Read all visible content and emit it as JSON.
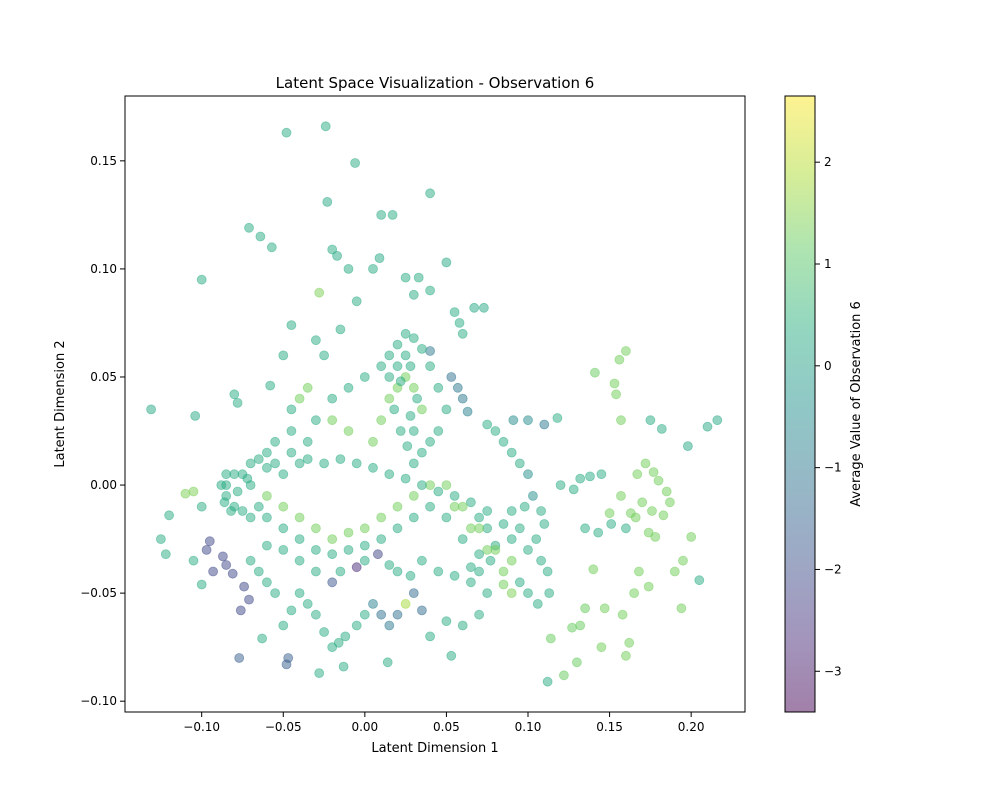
{
  "chart_data": {
    "type": "scatter",
    "title": "Latent Space Visualization - Observation 6",
    "xlabel": "Latent Dimension 1",
    "ylabel": "Latent Dimension 2",
    "xlim": [
      -0.147,
      0.233
    ],
    "ylim": [
      -0.105,
      0.18
    ],
    "x_ticks": [
      -0.1,
      -0.05,
      0.0,
      0.05,
      0.1,
      0.15,
      0.2
    ],
    "x_tick_labels": [
      "−0.10",
      "−0.05",
      "0.00",
      "0.05",
      "0.10",
      "0.15",
      "0.20"
    ],
    "y_ticks": [
      -0.1,
      -0.05,
      0.0,
      0.05,
      0.1,
      0.15
    ],
    "y_tick_labels": [
      "−0.10",
      "−0.05",
      "0.00",
      "0.05",
      "0.10",
      "0.15"
    ],
    "grid": false,
    "colormap": "viridis",
    "point_alpha": 0.5,
    "colorbar": {
      "label": "Average Value of Observation 6",
      "range": [
        -3.4,
        2.65
      ],
      "ticks": [
        -3,
        -2,
        -1,
        0,
        1,
        2
      ],
      "tick_labels": [
        "−3",
        "−2",
        "−1",
        "0",
        "1",
        "2"
      ]
    },
    "points": [
      [
        -0.048,
        0.163,
        0.3
      ],
      [
        -0.024,
        0.166,
        0.3
      ],
      [
        -0.006,
        0.149,
        0.3
      ],
      [
        0.04,
        0.135,
        0.3
      ],
      [
        -0.023,
        0.131,
        0.2
      ],
      [
        0.01,
        0.125,
        0.3
      ],
      [
        0.017,
        0.125,
        0.3
      ],
      [
        -0.071,
        0.119,
        0.3
      ],
      [
        -0.064,
        0.115,
        0.3
      ],
      [
        -0.057,
        0.11,
        0.3
      ],
      [
        -0.1,
        0.095,
        0.3
      ],
      [
        -0.02,
        0.109,
        0.3
      ],
      [
        0.05,
        0.103,
        0.2
      ],
      [
        -0.017,
        0.106,
        0.2
      ],
      [
        0.009,
        0.105,
        0.2
      ],
      [
        -0.131,
        0.035,
        0.2
      ],
      [
        -0.104,
        0.032,
        0.2
      ],
      [
        -0.028,
        0.089,
        1.4
      ],
      [
        0.073,
        0.082,
        0.2
      ],
      [
        0.067,
        0.082,
        0.2
      ],
      [
        0.141,
        0.052,
        1.2
      ],
      [
        0.156,
        0.058,
        1.3
      ],
      [
        0.16,
        0.062,
        1.3
      ],
      [
        0.153,
        0.047,
        1.3
      ],
      [
        0.154,
        0.042,
        1.3
      ],
      [
        0.157,
        0.03,
        1.3
      ],
      [
        0.175,
        0.03,
        0.3
      ],
      [
        0.182,
        0.026,
        0.3
      ],
      [
        0.216,
        0.03,
        0.2
      ],
      [
        0.21,
        0.027,
        0.2
      ],
      [
        0.198,
        0.018,
        0.2
      ],
      [
        0.118,
        0.031,
        0.3
      ],
      [
        0.1,
        0.03,
        -0.5
      ],
      [
        0.091,
        0.03,
        -0.5
      ],
      [
        0.11,
        0.028,
        -1.0
      ],
      [
        0.167,
        0.005,
        1.3
      ],
      [
        0.172,
        0.01,
        1.3
      ],
      [
        0.177,
        0.006,
        1.3
      ],
      [
        0.18,
        0.002,
        1.3
      ],
      [
        0.185,
        -0.003,
        1.3
      ],
      [
        0.187,
        -0.008,
        1.3
      ],
      [
        0.183,
        -0.014,
        1.3
      ],
      [
        0.176,
        -0.012,
        1.3
      ],
      [
        0.17,
        -0.008,
        1.3
      ],
      [
        0.163,
        -0.013,
        1.3
      ],
      [
        0.157,
        -0.005,
        1.3
      ],
      [
        0.15,
        -0.013,
        1.3
      ],
      [
        0.145,
        0.005,
        0.3
      ],
      [
        0.138,
        0.004,
        0.3
      ],
      [
        0.132,
        0.003,
        0.3
      ],
      [
        0.128,
        -0.002,
        0.3
      ],
      [
        0.12,
        0.0,
        0.3
      ],
      [
        0.135,
        -0.02,
        0.3
      ],
      [
        0.143,
        -0.022,
        0.3
      ],
      [
        0.151,
        -0.018,
        0.3
      ],
      [
        0.16,
        -0.02,
        0.3
      ],
      [
        0.166,
        -0.015,
        1.3
      ],
      [
        0.174,
        -0.022,
        1.3
      ],
      [
        0.178,
        -0.024,
        1.3
      ],
      [
        0.19,
        -0.04,
        1.3
      ],
      [
        0.195,
        -0.035,
        1.3
      ],
      [
        0.205,
        -0.044,
        0.3
      ],
      [
        0.194,
        -0.057,
        1.3
      ],
      [
        0.2,
        -0.024,
        1.3
      ],
      [
        0.174,
        -0.047,
        1.3
      ],
      [
        0.168,
        -0.04,
        1.3
      ],
      [
        0.165,
        -0.05,
        1.3
      ],
      [
        0.158,
        -0.06,
        1.3
      ],
      [
        0.14,
        -0.039,
        1.3
      ],
      [
        0.145,
        -0.075,
        1.3
      ],
      [
        0.162,
        -0.073,
        1.3
      ],
      [
        0.147,
        -0.057,
        1.3
      ],
      [
        0.135,
        -0.057,
        1.2
      ],
      [
        0.127,
        -0.066,
        1.2
      ],
      [
        0.13,
        -0.082,
        1.2
      ],
      [
        0.122,
        -0.088,
        1.2
      ],
      [
        0.112,
        -0.091,
        0.3
      ],
      [
        0.16,
        -0.079,
        1.3
      ],
      [
        0.114,
        -0.071,
        1.2
      ],
      [
        0.132,
        -0.065,
        1.2
      ],
      [
        -0.077,
        -0.08,
        -1.6
      ],
      [
        -0.047,
        -0.08,
        -1.6
      ],
      [
        -0.048,
        -0.083,
        -1.6
      ],
      [
        -0.028,
        -0.087,
        0.3
      ],
      [
        -0.013,
        -0.084,
        0.3
      ],
      [
        0.014,
        -0.082,
        0.3
      ],
      [
        0.053,
        -0.079,
        0.3
      ],
      [
        -0.016,
        -0.073,
        0.3
      ],
      [
        -0.063,
        -0.071,
        0.3
      ],
      [
        -0.076,
        -0.058,
        -2.1
      ],
      [
        -0.071,
        -0.053,
        -2.1
      ],
      [
        -0.074,
        -0.047,
        -2.1
      ],
      [
        -0.081,
        -0.041,
        -2.1
      ],
      [
        -0.085,
        -0.037,
        -2.1
      ],
      [
        -0.087,
        -0.033,
        -2.1
      ],
      [
        -0.095,
        -0.026,
        -2.1
      ],
      [
        -0.097,
        -0.03,
        -2.1
      ],
      [
        -0.093,
        -0.04,
        -2.1
      ],
      [
        -0.1,
        -0.046,
        0.3
      ],
      [
        -0.105,
        -0.035,
        0.3
      ],
      [
        -0.12,
        -0.014,
        0.3
      ],
      [
        -0.125,
        -0.025,
        0.3
      ],
      [
        -0.122,
        -0.032,
        0.3
      ],
      [
        -0.11,
        -0.004,
        1.4
      ],
      [
        -0.105,
        -0.003,
        1.4
      ],
      [
        -0.1,
        -0.01,
        0.3
      ],
      [
        -0.08,
        0.042,
        0.3
      ],
      [
        -0.078,
        0.038,
        0.3
      ],
      [
        -0.058,
        0.046,
        0.3
      ],
      [
        -0.045,
        0.074,
        0.3
      ],
      [
        -0.05,
        0.06,
        0.3
      ],
      [
        -0.03,
        0.067,
        0.3
      ],
      [
        -0.025,
        0.06,
        0.3
      ],
      [
        -0.015,
        0.072,
        0.3
      ],
      [
        -0.005,
        0.085,
        0.3
      ],
      [
        -0.01,
        0.1,
        0.3
      ],
      [
        0.005,
        0.1,
        0.3
      ],
      [
        0.025,
        0.096,
        0.3
      ],
      [
        0.033,
        0.096,
        0.3
      ],
      [
        0.04,
        0.09,
        0.3
      ],
      [
        0.03,
        0.088,
        0.3
      ],
      [
        0.055,
        0.08,
        0.3
      ],
      [
        0.058,
        0.075,
        0.3
      ],
      [
        0.06,
        0.07,
        0.3
      ],
      [
        0.04,
        0.062,
        -1.0
      ],
      [
        0.053,
        0.05,
        -1.2
      ],
      [
        0.057,
        0.045,
        -1.0
      ],
      [
        0.06,
        0.04,
        -1.0
      ],
      [
        0.063,
        0.034,
        -0.8
      ],
      [
        0.075,
        0.028,
        0.3
      ],
      [
        0.08,
        0.025,
        0.3
      ],
      [
        0.085,
        0.02,
        0.3
      ],
      [
        0.09,
        0.015,
        0.3
      ],
      [
        0.095,
        0.01,
        0.3
      ],
      [
        0.1,
        0.005,
        -0.4
      ],
      [
        0.103,
        -0.005,
        -0.4
      ],
      [
        0.108,
        -0.012,
        0.3
      ],
      [
        0.11,
        -0.018,
        0.3
      ],
      [
        0.105,
        -0.025,
        0.3
      ],
      [
        0.1,
        -0.03,
        0.3
      ],
      [
        0.108,
        -0.035,
        0.3
      ],
      [
        0.112,
        -0.04,
        0.3
      ],
      [
        0.113,
        -0.05,
        0.3
      ],
      [
        0.106,
        -0.055,
        0.3
      ],
      [
        0.1,
        -0.05,
        0.3
      ],
      [
        0.095,
        -0.045,
        0.3
      ],
      [
        0.09,
        -0.05,
        1.4
      ],
      [
        0.085,
        -0.046,
        1.3
      ],
      [
        0.075,
        -0.05,
        0.3
      ],
      [
        0.07,
        -0.06,
        0.3
      ],
      [
        0.06,
        -0.065,
        0.3
      ],
      [
        0.05,
        -0.063,
        0.3
      ],
      [
        0.04,
        -0.07,
        0.3
      ],
      [
        0.035,
        -0.058,
        -1.3
      ],
      [
        0.03,
        -0.05,
        -1.3
      ],
      [
        0.025,
        -0.055,
        1.8
      ],
      [
        0.02,
        -0.06,
        -1.2
      ],
      [
        0.015,
        -0.065,
        -1.0
      ],
      [
        0.01,
        -0.06,
        -1.2
      ],
      [
        0.005,
        -0.055,
        -0.8
      ],
      [
        0.0,
        -0.06,
        0.3
      ],
      [
        -0.005,
        -0.065,
        0.3
      ],
      [
        -0.012,
        -0.07,
        0.3
      ],
      [
        -0.02,
        -0.075,
        0.3
      ],
      [
        -0.025,
        -0.068,
        0.3
      ],
      [
        -0.03,
        -0.06,
        0.3
      ],
      [
        -0.035,
        -0.055,
        0.3
      ],
      [
        -0.04,
        -0.05,
        0.3
      ],
      [
        -0.045,
        -0.058,
        0.3
      ],
      [
        -0.05,
        -0.065,
        0.3
      ],
      [
        -0.055,
        -0.05,
        0.3
      ],
      [
        -0.06,
        -0.045,
        0.3
      ],
      [
        -0.065,
        -0.04,
        0.3
      ],
      [
        -0.07,
        -0.035,
        0.3
      ],
      [
        -0.06,
        -0.028,
        0.3
      ],
      [
        -0.05,
        -0.03,
        0.3
      ],
      [
        -0.04,
        -0.035,
        0.3
      ],
      [
        -0.03,
        -0.04,
        0.3
      ],
      [
        -0.02,
        -0.045,
        -1.8
      ],
      [
        -0.015,
        -0.04,
        0.3
      ],
      [
        -0.005,
        -0.038,
        -2.7
      ],
      [
        0.0,
        -0.035,
        0.3
      ],
      [
        0.008,
        -0.032,
        -2.2
      ],
      [
        0.015,
        -0.037,
        0.3
      ],
      [
        0.02,
        -0.04,
        0.3
      ],
      [
        0.028,
        -0.042,
        0.3
      ],
      [
        0.035,
        -0.035,
        0.3
      ],
      [
        0.045,
        -0.04,
        0.3
      ],
      [
        0.055,
        -0.042,
        0.3
      ],
      [
        0.065,
        -0.045,
        0.3
      ],
      [
        0.07,
        -0.04,
        0.3
      ],
      [
        0.077,
        -0.035,
        0.3
      ],
      [
        0.08,
        -0.028,
        0.3
      ],
      [
        0.075,
        -0.02,
        0.3
      ],
      [
        0.07,
        -0.015,
        0.3
      ],
      [
        0.09,
        -0.012,
        0.3
      ],
      [
        0.095,
        -0.02,
        0.3
      ],
      [
        0.098,
        -0.01,
        0.3
      ],
      [
        -0.04,
        0.01,
        0.3
      ],
      [
        -0.035,
        0.02,
        0.3
      ],
      [
        -0.03,
        0.03,
        0.3
      ],
      [
        -0.045,
        0.025,
        0.3
      ],
      [
        -0.055,
        0.02,
        0.3
      ],
      [
        -0.06,
        0.015,
        0.3
      ],
      [
        -0.05,
        0.005,
        0.3
      ],
      [
        -0.035,
        0.045,
        1.3
      ],
      [
        -0.04,
        0.04,
        1.3
      ],
      [
        -0.045,
        0.035,
        0.3
      ],
      [
        -0.02,
        0.04,
        0.3
      ],
      [
        -0.01,
        0.045,
        0.3
      ],
      [
        0.0,
        0.05,
        0.3
      ],
      [
        0.01,
        0.055,
        0.3
      ],
      [
        0.015,
        0.06,
        0.3
      ],
      [
        0.02,
        0.065,
        0.3
      ],
      [
        0.025,
        0.07,
        0.3
      ],
      [
        0.03,
        0.068,
        0.3
      ],
      [
        0.035,
        0.063,
        0.3
      ],
      [
        0.04,
        0.055,
        0.3
      ],
      [
        0.045,
        0.045,
        0.3
      ],
      [
        0.05,
        0.035,
        0.3
      ],
      [
        0.045,
        0.025,
        0.3
      ],
      [
        0.04,
        0.02,
        0.3
      ],
      [
        0.035,
        0.015,
        0.3
      ],
      [
        0.03,
        0.01,
        0.3
      ],
      [
        -0.02,
        0.03,
        1.3
      ],
      [
        -0.01,
        0.025,
        1.3
      ],
      [
        0.005,
        0.02,
        1.3
      ],
      [
        0.01,
        0.03,
        1.3
      ],
      [
        0.015,
        0.04,
        1.3
      ],
      [
        0.02,
        0.045,
        1.3
      ],
      [
        0.025,
        0.05,
        1.3
      ],
      [
        0.03,
        0.045,
        1.3
      ],
      [
        0.035,
        0.035,
        1.3
      ],
      [
        0.05,
        0.0,
        1.3
      ],
      [
        0.06,
        -0.01,
        1.3
      ],
      [
        0.07,
        -0.02,
        1.3
      ],
      [
        0.08,
        -0.03,
        1.3
      ],
      [
        0.09,
        -0.035,
        1.3
      ],
      [
        0.085,
        -0.04,
        1.3
      ],
      [
        0.075,
        -0.03,
        1.3
      ],
      [
        0.065,
        -0.02,
        1.3
      ],
      [
        0.055,
        -0.01,
        1.3
      ],
      [
        0.04,
        0.0,
        1.3
      ],
      [
        0.03,
        -0.005,
        1.3
      ],
      [
        0.02,
        -0.01,
        1.3
      ],
      [
        0.01,
        -0.015,
        1.3
      ],
      [
        0.0,
        -0.02,
        1.3
      ],
      [
        -0.01,
        -0.022,
        1.3
      ],
      [
        -0.02,
        -0.025,
        1.3
      ],
      [
        -0.03,
        -0.02,
        1.3
      ],
      [
        -0.04,
        -0.015,
        1.3
      ],
      [
        -0.05,
        -0.01,
        1.3
      ],
      [
        -0.06,
        -0.005,
        1.3
      ],
      [
        -0.07,
        0.0,
        0.3
      ],
      [
        -0.08,
        0.005,
        0.3
      ],
      [
        -0.085,
        0.0,
        0.3
      ],
      [
        -0.085,
        -0.005,
        0.3
      ],
      [
        -0.08,
        -0.01,
        0.3
      ],
      [
        -0.075,
        -0.012,
        0.3
      ],
      [
        -0.07,
        -0.015,
        0.3
      ],
      [
        -0.065,
        -0.01,
        0.3
      ],
      [
        -0.06,
        -0.015,
        0.3
      ],
      [
        -0.05,
        -0.02,
        0.3
      ],
      [
        -0.04,
        -0.025,
        0.3
      ],
      [
        -0.03,
        -0.03,
        0.3
      ],
      [
        -0.02,
        -0.032,
        0.3
      ],
      [
        -0.01,
        -0.03,
        0.3
      ],
      [
        0.0,
        -0.028,
        0.3
      ],
      [
        0.01,
        -0.025,
        0.3
      ],
      [
        0.02,
        -0.02,
        0.3
      ],
      [
        0.03,
        -0.015,
        0.3
      ],
      [
        0.04,
        -0.01,
        0.3
      ],
      [
        0.05,
        -0.015,
        0.3
      ],
      [
        0.06,
        -0.025,
        0.3
      ],
      [
        0.07,
        -0.032,
        0.3
      ],
      [
        0.065,
        -0.038,
        0.3
      ],
      [
        -0.075,
        0.005,
        0.3
      ],
      [
        -0.07,
        0.01,
        0.3
      ],
      [
        -0.065,
        0.012,
        0.3
      ],
      [
        -0.06,
        0.008,
        0.3
      ],
      [
        -0.055,
        0.01,
        0.3
      ],
      [
        -0.045,
        0.015,
        0.3
      ],
      [
        -0.035,
        0.012,
        0.3
      ],
      [
        -0.025,
        0.01,
        0.3
      ],
      [
        -0.015,
        0.012,
        0.3
      ],
      [
        -0.005,
        0.01,
        0.3
      ],
      [
        0.005,
        0.008,
        0.3
      ],
      [
        0.015,
        0.005,
        0.3
      ],
      [
        0.025,
        0.003,
        0.3
      ],
      [
        0.035,
        0.0,
        0.3
      ],
      [
        0.045,
        -0.003,
        0.3
      ],
      [
        0.055,
        -0.005,
        0.3
      ],
      [
        0.065,
        -0.008,
        0.3
      ],
      [
        0.075,
        -0.012,
        0.3
      ],
      [
        0.085,
        -0.018,
        0.3
      ],
      [
        0.09,
        -0.025,
        0.3
      ],
      [
        -0.085,
        0.005,
        0.3
      ],
      [
        -0.088,
        0.0,
        0.3
      ],
      [
        -0.086,
        -0.008,
        0.3
      ],
      [
        -0.082,
        -0.012,
        0.3
      ],
      [
        -0.078,
        -0.003,
        0.3
      ],
      [
        -0.072,
        0.003,
        0.3
      ],
      [
        0.015,
        0.05,
        0.3
      ],
      [
        0.02,
        0.055,
        0.3
      ],
      [
        0.025,
        0.06,
        0.3
      ],
      [
        0.028,
        0.055,
        0.3
      ],
      [
        0.022,
        0.048,
        0.3
      ],
      [
        0.018,
        0.035,
        0.3
      ],
      [
        0.022,
        0.025,
        0.3
      ],
      [
        0.026,
        0.018,
        0.3
      ],
      [
        0.03,
        0.025,
        0.3
      ],
      [
        0.032,
        0.04,
        0.3
      ],
      [
        0.028,
        0.032,
        0.3
      ]
    ]
  }
}
